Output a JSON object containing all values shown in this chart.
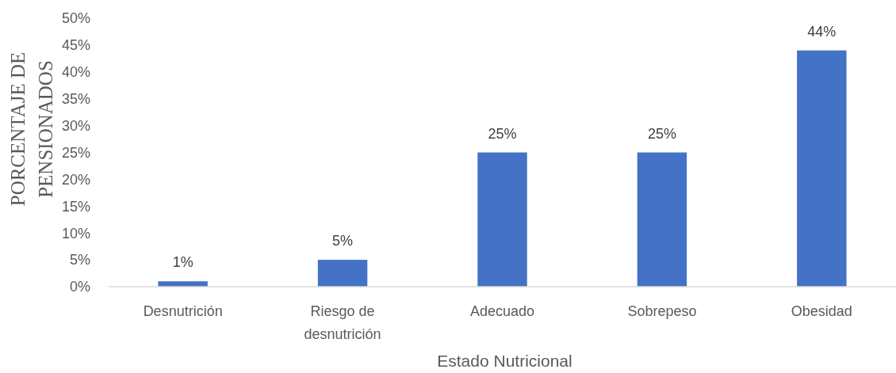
{
  "chart_data": {
    "type": "bar",
    "xlabel": "Estado Nutricional",
    "ylabel": "PORCENTAJE DE PENSIONADOS",
    "categories": [
      "Desnutrición",
      "Riesgo de desnutrición",
      "Adecuado",
      "Sobrepeso",
      "Obesidad"
    ],
    "values": [
      1,
      5,
      25,
      25,
      44
    ],
    "value_labels": [
      "1%",
      "5%",
      "25%",
      "25%",
      "44%"
    ],
    "color": "#4472c4",
    "ylim": [
      0,
      50
    ],
    "yticks": [
      {
        "value": 0,
        "label": "0%"
      },
      {
        "value": 5,
        "label": "5%"
      },
      {
        "value": 10,
        "label": "10%"
      },
      {
        "value": 15,
        "label": "15%"
      },
      {
        "value": 20,
        "label": "20%"
      },
      {
        "value": 25,
        "label": "25%"
      },
      {
        "value": 30,
        "label": "30%"
      },
      {
        "value": 35,
        "label": "35%"
      },
      {
        "value": 40,
        "label": "40%"
      },
      {
        "value": 45,
        "label": "45%"
      },
      {
        "value": 50,
        "label": "50%"
      }
    ]
  }
}
